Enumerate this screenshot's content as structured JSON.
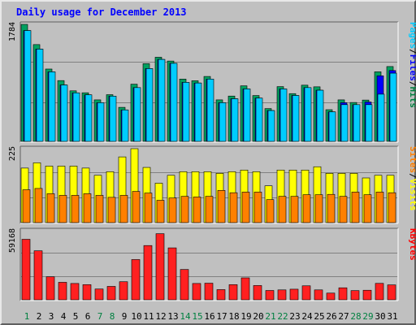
{
  "title": "Daily usage for December 2013",
  "chart_data": [
    {
      "type": "bar",
      "title": "",
      "legend": [
        {
          "text": "Pages",
          "color": "#00ccff"
        },
        {
          "text": "/",
          "color": "#000000"
        },
        {
          "text": "Files",
          "color": "#0000ff"
        },
        {
          "text": "/",
          "color": "#000000"
        },
        {
          "text": "Hits",
          "color": "#008040"
        }
      ],
      "ymax_label": "1784",
      "ylim": [
        0,
        1784
      ],
      "grid": true,
      "categories": [
        "1",
        "2",
        "3",
        "4",
        "5",
        "6",
        "7",
        "8",
        "9",
        "10",
        "11",
        "12",
        "13",
        "14",
        "15",
        "16",
        "17",
        "18",
        "19",
        "20",
        "21",
        "22",
        "23",
        "24",
        "25",
        "26",
        "27",
        "28",
        "29",
        "30",
        "31"
      ],
      "series": [
        {
          "name": "Hits",
          "color": "#00a060",
          "values": [
            1784,
            1476,
            1103,
            927,
            771,
            741,
            633,
            712,
            519,
            872,
            1185,
            1283,
            1225,
            950,
            925,
            990,
            633,
            691,
            847,
            699,
            500,
            835,
            728,
            857,
            832,
            483,
            633,
            593,
            630,
            1061,
            1141
          ]
        },
        {
          "name": "Files",
          "color": "#0000ff",
          "values": [
            1690,
            1407,
            1060,
            860,
            740,
            710,
            590,
            690,
            480,
            820,
            1110,
            1250,
            1190,
            900,
            890,
            950,
            590,
            650,
            800,
            660,
            470,
            800,
            700,
            820,
            780,
            450,
            590,
            560,
            600,
            1000,
            1080
          ]
        },
        {
          "name": "Pages",
          "color": "#00ccff",
          "values": [
            1690,
            1407,
            1060,
            860,
            740,
            710,
            590,
            690,
            480,
            820,
            1110,
            1250,
            1190,
            900,
            890,
            950,
            590,
            650,
            800,
            660,
            470,
            800,
            700,
            820,
            780,
            450,
            560,
            560,
            560,
            720,
            1040
          ]
        }
      ]
    },
    {
      "type": "bar",
      "title": "",
      "legend": [
        {
          "text": "Sites",
          "color": "#ff8000"
        },
        {
          "text": "/",
          "color": "#000000"
        },
        {
          "text": "Visits",
          "color": "#ffff00"
        }
      ],
      "ymax_label": "225",
      "ylim": [
        0,
        225
      ],
      "grid": true,
      "categories": [
        "1",
        "2",
        "3",
        "4",
        "5",
        "6",
        "7",
        "8",
        "9",
        "10",
        "11",
        "12",
        "13",
        "14",
        "15",
        "16",
        "17",
        "18",
        "19",
        "20",
        "21",
        "22",
        "23",
        "24",
        "25",
        "26",
        "27",
        "28",
        "29",
        "30",
        "31"
      ],
      "series": [
        {
          "name": "Visits",
          "color": "#ffff00",
          "values": [
            166,
            182,
            172,
            172,
            172,
            166,
            144,
            155,
            200,
            225,
            168,
            120,
            144,
            155,
            155,
            155,
            150,
            155,
            160,
            155,
            112,
            160,
            160,
            160,
            170,
            150,
            150,
            150,
            136,
            144,
            144
          ]
        },
        {
          "name": "Sites",
          "color": "#ff8000",
          "values": [
            100,
            104,
            88,
            83,
            83,
            88,
            83,
            77,
            83,
            95,
            90,
            68,
            75,
            80,
            78,
            80,
            98,
            91,
            93,
            93,
            70,
            80,
            80,
            85,
            85,
            86,
            80,
            93,
            85,
            93,
            91
          ]
        }
      ]
    },
    {
      "type": "bar",
      "title": "",
      "legend": [
        {
          "text": "KBytes",
          "color": "#ff0000"
        }
      ],
      "ymax_label": "59168",
      "ylim": [
        0,
        59168
      ],
      "grid": true,
      "categories": [
        "1",
        "2",
        "3",
        "4",
        "5",
        "6",
        "7",
        "8",
        "9",
        "10",
        "11",
        "12",
        "13",
        "14",
        "15",
        "16",
        "17",
        "18",
        "19",
        "20",
        "21",
        "22",
        "23",
        "24",
        "25",
        "26",
        "27",
        "28",
        "29",
        "30",
        "31"
      ],
      "x_label_colors": [
        "#008040",
        "#000000",
        "#000000",
        "#000000",
        "#000000",
        "#000000",
        "#008040",
        "#008040",
        "#000000",
        "#000000",
        "#000000",
        "#000000",
        "#000000",
        "#008040",
        "#008040",
        "#000000",
        "#000000",
        "#000000",
        "#000000",
        "#000000",
        "#008040",
        "#008040",
        "#000000",
        "#000000",
        "#000000",
        "#000000",
        "#000000",
        "#008040",
        "#008040",
        "#000000",
        "#000000"
      ],
      "series": [
        {
          "name": "KBytes",
          "color": "#ff2020",
          "values": [
            51850,
            42000,
            19750,
            15000,
            14000,
            13000,
            9250,
            11500,
            15500,
            34500,
            46500,
            56650,
            44500,
            26000,
            14000,
            14250,
            8750,
            13000,
            18800,
            12250,
            8000,
            8500,
            9100,
            12000,
            8500,
            5750,
            10300,
            7900,
            8200,
            14100,
            12800
          ]
        }
      ]
    }
  ]
}
